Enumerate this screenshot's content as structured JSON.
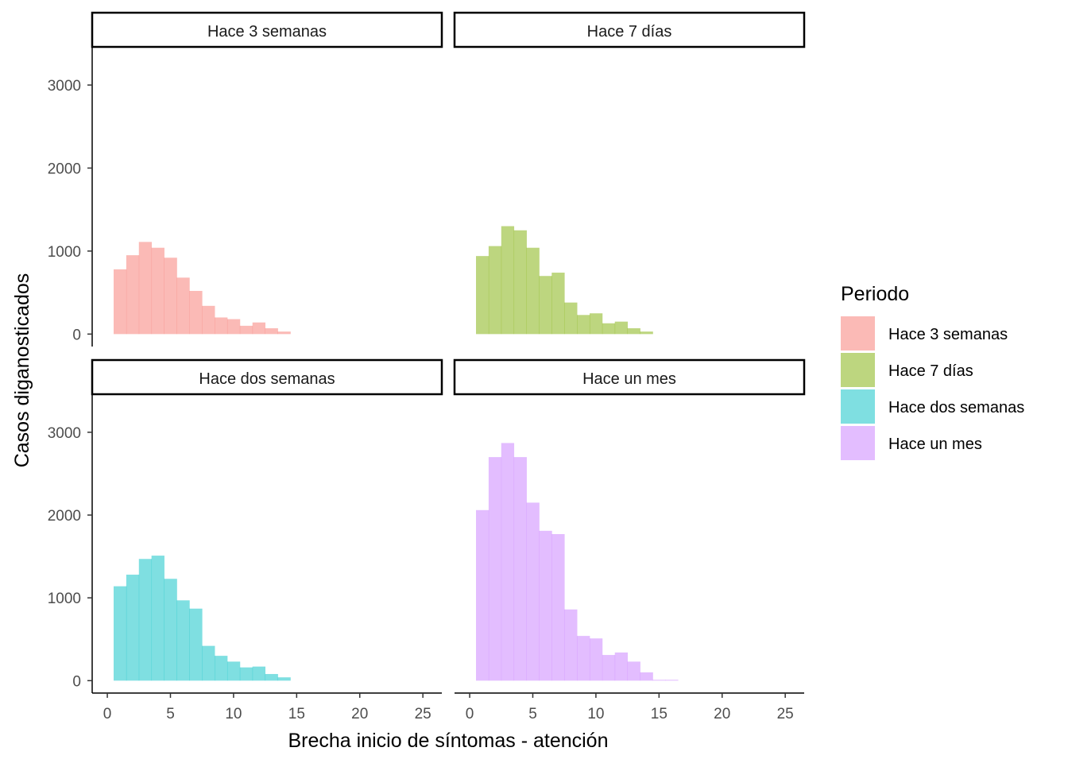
{
  "chart_data": {
    "type": "bar",
    "subtype": "faceted-histogram",
    "xlabel": "Brecha inicio de síntomas - atención",
    "ylabel": "Casos diganosticados",
    "xlim": [
      -1.2,
      26.5
    ],
    "ylim": [
      -150,
      3450
    ],
    "x_ticks": [
      0,
      5,
      10,
      15,
      20,
      25
    ],
    "y_ticks": [
      0,
      1000,
      2000,
      3000
    ],
    "bin_start": 0.5,
    "bin_width": 1,
    "grid": false,
    "facet_layout": "2x2",
    "panels": [
      {
        "title": "Hace 3 semanas",
        "color": "#F8766D",
        "values": [
          780,
          950,
          1110,
          1040,
          920,
          680,
          520,
          340,
          200,
          180,
          100,
          140,
          70,
          30
        ]
      },
      {
        "title": "Hace 7 días",
        "color": "#7CAE00",
        "values": [
          940,
          1060,
          1300,
          1250,
          1040,
          700,
          740,
          380,
          230,
          250,
          130,
          150,
          70,
          30
        ]
      },
      {
        "title": "Hace dos semanas",
        "color": "#00BFC4",
        "values": [
          1140,
          1280,
          1470,
          1510,
          1230,
          970,
          870,
          420,
          300,
          230,
          160,
          170,
          80,
          40
        ]
      },
      {
        "title": "Hace un mes",
        "color": "#C77CFF",
        "values": [
          2060,
          2700,
          2870,
          2700,
          2150,
          1810,
          1770,
          860,
          540,
          510,
          310,
          340,
          230,
          100,
          10,
          10
        ]
      }
    ],
    "legend": {
      "title": "Periodo",
      "position": "right",
      "entries": [
        {
          "label": "Hace 3 semanas",
          "color": "#F8766D"
        },
        {
          "label": "Hace 7 días",
          "color": "#7CAE00"
        },
        {
          "label": "Hace dos semanas",
          "color": "#00BFC4"
        },
        {
          "label": "Hace un mes",
          "color": "#C77CFF"
        }
      ]
    }
  }
}
